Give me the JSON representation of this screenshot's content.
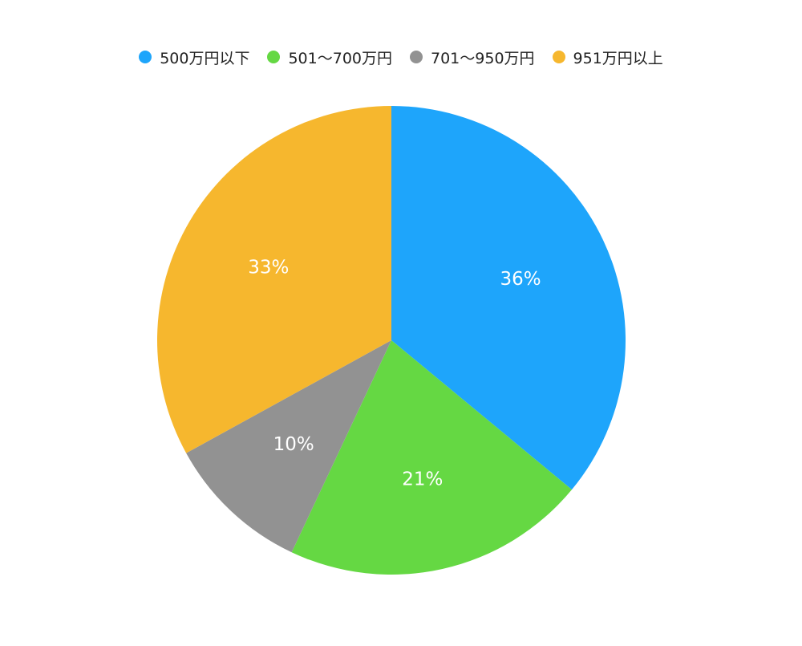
{
  "chart_data": {
    "type": "pie",
    "categories": [
      "500万円以下",
      "501〜700万円",
      "701〜950万円",
      "951万円以上"
    ],
    "values": [
      36,
      21,
      10,
      33
    ],
    "value_labels": [
      "36%",
      "21%",
      "10%",
      "33%"
    ],
    "colors": [
      "#1ea5fb",
      "#65d843",
      "#929292",
      "#f6b72e"
    ],
    "legend_position": "top",
    "start": "12 o'clock",
    "direction": "clockwise"
  }
}
